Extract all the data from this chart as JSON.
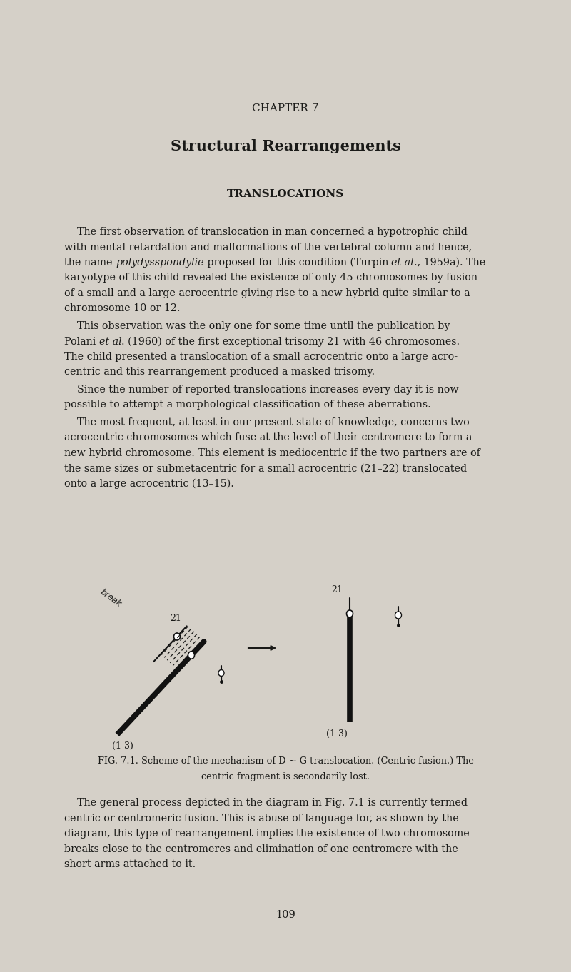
{
  "background_color": "#d5d0c8",
  "page_width": 8.0,
  "page_height": 13.62,
  "chapter_text": "CHAPTER 7",
  "title_text": "Structural Rearrangements",
  "section_text": "TRANSLOCATIONS",
  "text_color": "#1a1a18",
  "body_fontsize": 10.3,
  "lh": 0.215,
  "lm": 0.9,
  "lines1": [
    "    The first observation of translocation in man concerned a hypotrophic child",
    "with mental retardation and malformations of the vertebral column and hence,",
    "the name @polydysspondylie@ proposed for this condition (Turpin @et al@., 1959a). The",
    "karyotype of this child revealed the existence of only 45 chromosomes by fusion",
    "of a small and a large acrocentric giving rise to a new hybrid quite similar to a",
    "chromosome 10 or 12."
  ],
  "lines2": [
    "    This observation was the only one for some time until the publication by",
    "Polani @et al@. (1960) of the first exceptional trisomy 21 with 46 chromosomes.",
    "The child presented a translocation of a small acrocentric onto a large acro-",
    "centric and this rearrangement produced a masked trisomy."
  ],
  "lines3": [
    "    Since the number of reported translocations increases every day it is now",
    "possible to attempt a morphological classification of these aberrations."
  ],
  "lines4": [
    "    The most frequent, at least in our present state of knowledge, concerns two",
    "acrocentric chromosomes which fuse at the level of their centromere to form a",
    "new hybrid chromosome. This element is mediocentric if the two partners are of",
    "the same sizes or submetacentric for a small acrocentric (21–22) translocated",
    "onto a large acrocentric (13–15)."
  ],
  "fig_caption_line1": "FIG. 7.1. Scheme of the mechanism of D ∼ G translocation. (Centric fusion.) The",
  "fig_caption_line2": "centric fragment is secondarily lost.",
  "lines5": [
    "    The general process depicted in the diagram in Fig. 7.1 is currently termed",
    "centric or centromeric fusion. This is abuse of language for, as shown by the",
    "diagram, this type of rearrangement implies the existence of two chromosome",
    "breaks close to the centromeres and elimination of one centromere with the",
    "short arms attached to it."
  ],
  "page_number": "109"
}
